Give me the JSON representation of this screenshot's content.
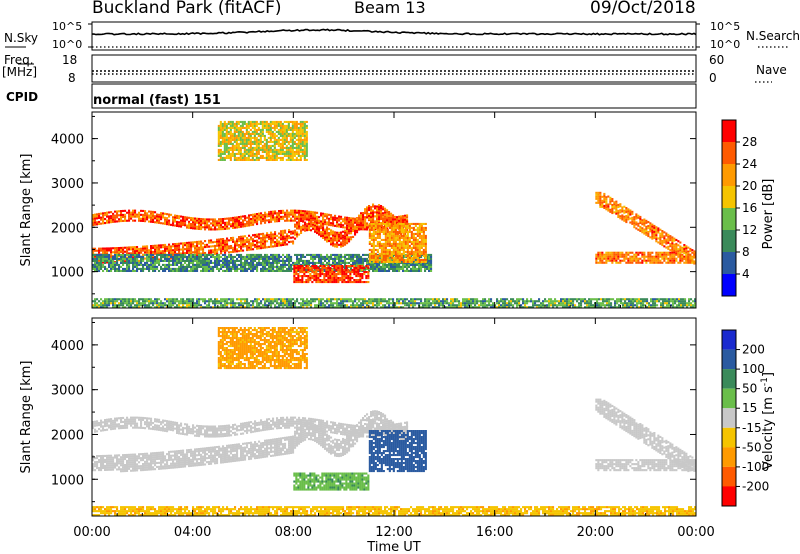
{
  "header": {
    "station": "Buckland Park (fitACF)",
    "beam": "Beam 13",
    "date": "09/Oct/2018"
  },
  "noise_panel": {
    "left_label": "N.Sky",
    "right_label": "N.Search",
    "tick_top": "10^5",
    "tick_bottom": "10^0"
  },
  "freq_panel": {
    "left_label": "Freq.",
    "left_unit": "[MHz]",
    "left_ticks": [
      "18",
      "8"
    ],
    "right_label": "Nave",
    "right_ticks": [
      "60",
      "0"
    ]
  },
  "cpid": {
    "label": "CPID",
    "value": "normal (fast) 151"
  },
  "colors": {
    "power": [
      "#0000ff",
      "#2a5aa0",
      "#3a8a5a",
      "#6abe4a",
      "#f5c400",
      "#ff9a00",
      "#ff5a00",
      "#ff0000"
    ],
    "velocity": [
      "#ff0000",
      "#ff5a00",
      "#ff9a00",
      "#f5c400",
      "#c8c8c8",
      "#6abe4a",
      "#3a8a5a",
      "#2a5aa0",
      "#1a2acf"
    ]
  },
  "chart_data": [
    {
      "type": "heatmap",
      "ylabel": "Slant Range [km]",
      "xlabel": "",
      "x_ticks": [
        "00:00",
        "04:00",
        "08:00",
        "12:00",
        "16:00",
        "20:00",
        "00:00"
      ],
      "xlim": [
        0,
        24
      ],
      "y_ticks": [
        "1000",
        "2000",
        "3000",
        "4000"
      ],
      "ylim": [
        180,
        4600
      ],
      "colorbar": {
        "label": "Power [dB]",
        "ticks": [
          "4",
          "8",
          "12",
          "16",
          "20",
          "24",
          "28"
        ],
        "range": [
          0,
          32
        ]
      },
      "features": [
        {
          "t": [
            0,
            12.5
          ],
          "range": [
            1200,
            3400
          ],
          "value": 26
        },
        {
          "t": [
            0,
            13.5
          ],
          "range": [
            1000,
            1400
          ],
          "value": 10
        },
        {
          "t": [
            8,
            11
          ],
          "range": [
            750,
            1150
          ],
          "value": 28
        },
        {
          "t": [
            5,
            8.5
          ],
          "range": [
            3500,
            4400
          ],
          "value": 18
        },
        {
          "t": [
            11,
            13.3
          ],
          "range": [
            1200,
            2100
          ],
          "value": 22
        },
        {
          "t": [
            20,
            24
          ],
          "range": [
            1200,
            2800
          ],
          "value": 24
        },
        {
          "t": [
            0,
            24
          ],
          "range": [
            180,
            400
          ],
          "value": 12
        }
      ]
    },
    {
      "type": "heatmap",
      "ylabel": "Slant Range [km]",
      "xlabel": "Time UT",
      "x_ticks": [
        "00:00",
        "04:00",
        "08:00",
        "12:00",
        "16:00",
        "20:00",
        "00:00"
      ],
      "xlim": [
        0,
        24
      ],
      "y_ticks": [
        "1000",
        "2000",
        "3000",
        "4000"
      ],
      "ylim": [
        180,
        4600
      ],
      "colorbar": {
        "label": "Velocity [m s^-1]",
        "ticks": [
          "200",
          "100",
          "50",
          "15",
          "-15",
          "-50",
          "-100",
          "-200"
        ],
        "range": [
          -300,
          300
        ]
      },
      "features": [
        {
          "t": [
            0,
            12.5
          ],
          "range": [
            1200,
            3400
          ],
          "value": 0
        },
        {
          "t": [
            11,
            13.3
          ],
          "range": [
            1200,
            2100
          ],
          "value": 120
        },
        {
          "t": [
            8,
            11
          ],
          "range": [
            750,
            1150
          ],
          "value": 40
        },
        {
          "t": [
            5,
            8.5
          ],
          "range": [
            3500,
            4400
          ],
          "value": -60
        },
        {
          "t": [
            20,
            24
          ],
          "range": [
            1200,
            2800
          ],
          "value": 0
        },
        {
          "t": [
            0,
            24
          ],
          "range": [
            180,
            400
          ],
          "value": -40
        }
      ]
    }
  ]
}
